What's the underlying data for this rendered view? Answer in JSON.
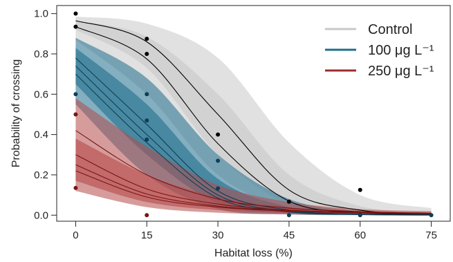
{
  "chart_data": {
    "type": "line",
    "title": "",
    "xlabel": "Habitat loss (%)",
    "ylabel": "Probability of crossing",
    "xlim": [
      -4,
      79
    ],
    "ylim": [
      -0.03,
      1.04
    ],
    "x_ticks": [
      0,
      15,
      30,
      45,
      60,
      75
    ],
    "x_tick_labels": [
      "0",
      "15",
      "30",
      "45",
      "60",
      "75"
    ],
    "y_ticks": [
      0.0,
      0.2,
      0.4,
      0.6,
      0.8,
      1.0
    ],
    "y_tick_labels": [
      "0.0",
      "0.2",
      "0.4",
      "0.6",
      "0.8",
      "1.0"
    ],
    "grid": false,
    "legend_position": "top-right",
    "series": [
      {
        "name": "Control",
        "color": "#c8c8c8",
        "line_color": "#000000",
        "points": [
          [
            0,
            1.0
          ],
          [
            0,
            0.935
          ],
          [
            15,
            0.875
          ],
          [
            15,
            0.8
          ],
          [
            30,
            0.4
          ],
          [
            45,
            0.067
          ],
          [
            60,
            0.125
          ]
        ],
        "curves": [
          [
            [
              0,
              0.965
            ],
            [
              15,
              0.86
            ],
            [
              30,
              0.5
            ],
            [
              45,
              0.125
            ],
            [
              60,
              0.025
            ],
            [
              75,
              0.006
            ]
          ],
          [
            [
              0,
              0.935
            ],
            [
              15,
              0.775
            ],
            [
              30,
              0.355
            ],
            [
              45,
              0.07
            ],
            [
              60,
              0.013
            ],
            [
              75,
              0.003
            ]
          ]
        ],
        "band_outer": {
          "upper": [
            0.985,
            0.95,
            0.78,
            0.36,
            0.1,
            0.035
          ],
          "lower": [
            0.87,
            0.6,
            0.2,
            0.03,
            0.004,
            0.001
          ]
        },
        "band_inner": {
          "upper": [
            0.965,
            0.885,
            0.6,
            0.2,
            0.045,
            0.012
          ],
          "lower": [
            0.92,
            0.73,
            0.3,
            0.055,
            0.009,
            0.002
          ]
        }
      },
      {
        "name": "100 μg L⁻¹",
        "color": "#1f6e8c",
        "line_color": "#0d3f57",
        "points": [
          [
            0,
            0.6
          ],
          [
            15,
            0.6
          ],
          [
            15,
            0.47
          ],
          [
            15,
            0.375
          ],
          [
            30,
            0.27
          ],
          [
            30,
            0.133
          ],
          [
            45,
            0.0
          ],
          [
            60,
            0.0
          ],
          [
            75,
            0.0
          ]
        ],
        "curves": [
          [
            [
              0,
              0.78
            ],
            [
              15,
              0.45
            ],
            [
              30,
              0.12
            ],
            [
              45,
              0.025
            ],
            [
              60,
              0.005
            ],
            [
              75,
              0.001
            ]
          ],
          [
            [
              0,
              0.74
            ],
            [
              15,
              0.4
            ],
            [
              30,
              0.1
            ],
            [
              45,
              0.02
            ],
            [
              60,
              0.004
            ],
            [
              75,
              0.001
            ]
          ],
          [
            [
              0,
              0.7
            ],
            [
              15,
              0.36
            ],
            [
              30,
              0.085
            ],
            [
              45,
              0.016
            ],
            [
              60,
              0.003
            ],
            [
              75,
              0.0
            ]
          ]
        ],
        "band_outer": {
          "upper": [
            0.88,
            0.68,
            0.3,
            0.08,
            0.02,
            0.005
          ],
          "lower": [
            0.55,
            0.2,
            0.03,
            0.004,
            0.0,
            0.0
          ]
        },
        "band_inner": {
          "upper": [
            0.83,
            0.55,
            0.18,
            0.04,
            0.008,
            0.002
          ],
          "lower": [
            0.65,
            0.3,
            0.06,
            0.01,
            0.002,
            0.0
          ]
        }
      },
      {
        "name": "250 μg L⁻¹",
        "color": "#b54a4a",
        "line_color": "#7a1515",
        "points": [
          [
            0,
            0.5
          ],
          [
            0,
            0.135
          ],
          [
            15,
            0.0
          ]
        ],
        "curves": [
          [
            [
              0,
              0.42
            ],
            [
              15,
              0.2
            ],
            [
              30,
              0.08
            ],
            [
              45,
              0.035
            ],
            [
              60,
              0.018
            ],
            [
              75,
              0.01
            ]
          ],
          [
            [
              0,
              0.3
            ],
            [
              15,
              0.13
            ],
            [
              30,
              0.055
            ],
            [
              45,
              0.025
            ],
            [
              60,
              0.014
            ],
            [
              75,
              0.008
            ]
          ],
          [
            [
              0,
              0.25
            ],
            [
              15,
              0.105
            ],
            [
              30,
              0.045
            ],
            [
              45,
              0.022
            ],
            [
              60,
              0.012
            ],
            [
              75,
              0.007
            ]
          ],
          [
            [
              0,
              0.22
            ],
            [
              15,
              0.09
            ],
            [
              30,
              0.04
            ],
            [
              45,
              0.02
            ],
            [
              60,
              0.011
            ],
            [
              75,
              0.006
            ]
          ]
        ],
        "band_outer": {
          "upper": [
            0.58,
            0.34,
            0.15,
            0.065,
            0.03,
            0.02
          ],
          "lower": [
            0.12,
            0.04,
            0.012,
            0.004,
            0.002,
            0.001
          ]
        },
        "band_inner": {
          "upper": [
            0.38,
            0.2,
            0.09,
            0.04,
            0.02,
            0.013
          ],
          "lower": [
            0.17,
            0.065,
            0.025,
            0.01,
            0.005,
            0.003
          ]
        }
      }
    ]
  }
}
